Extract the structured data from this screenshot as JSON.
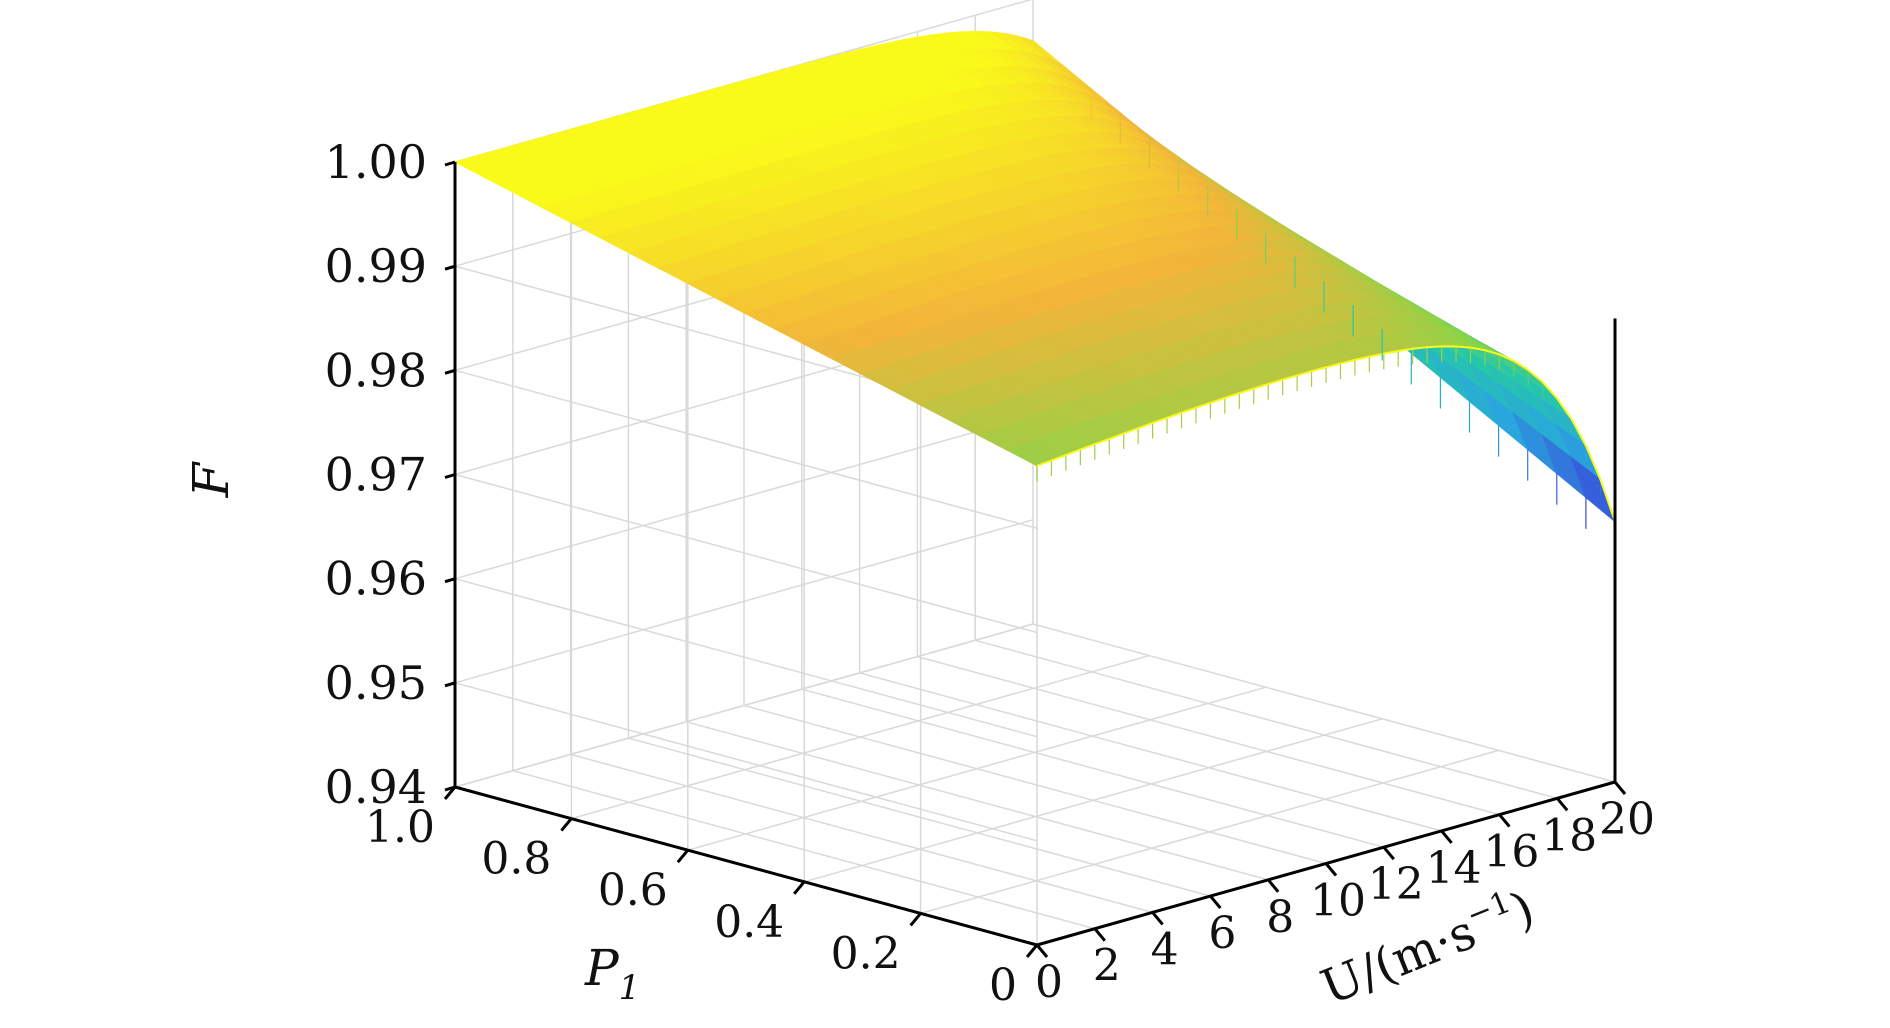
{
  "chart_data": {
    "type": "surface",
    "title": "",
    "zlabel": "F",
    "xlabel": "P",
    "xlabel_subscript": "1",
    "ylabel_main": "U/(m·s",
    "ylabel_sup": "−1",
    "ylabel_close": ")",
    "z_ticks": [
      "1.00",
      "0.99",
      "0.98",
      "0.97",
      "0.96",
      "0.95",
      "0.94"
    ],
    "p_ticks": [
      "1.0",
      "0.8",
      "0.6",
      "0.4",
      "0.2",
      "0"
    ],
    "u_ticks": [
      "0",
      "2",
      "4",
      "6",
      "8",
      "10",
      "12",
      "14",
      "16",
      "18",
      "20"
    ],
    "zlim": [
      0.94,
      1.0
    ],
    "xlim": [
      0,
      1
    ],
    "ylim": [
      0,
      20
    ],
    "grid": true,
    "colormap": [
      "#3c3fd9",
      "#2aa6de",
      "#26c8a8",
      "#8ad448",
      "#f3b53a",
      "#f9f91a"
    ],
    "surface_samples": [
      {
        "P1": 1.0,
        "U": 0,
        "F": 1.0
      },
      {
        "P1": 1.0,
        "U": 10,
        "F": 0.999
      },
      {
        "P1": 1.0,
        "U": 20,
        "F": 0.996
      },
      {
        "P1": 0.0,
        "U": 0,
        "F": 0.986
      },
      {
        "P1": 0.0,
        "U": 10,
        "F": 0.987
      },
      {
        "P1": 0.0,
        "U": 16,
        "F": 0.983
      },
      {
        "P1": 0.0,
        "U": 20,
        "F": 0.967
      }
    ]
  }
}
